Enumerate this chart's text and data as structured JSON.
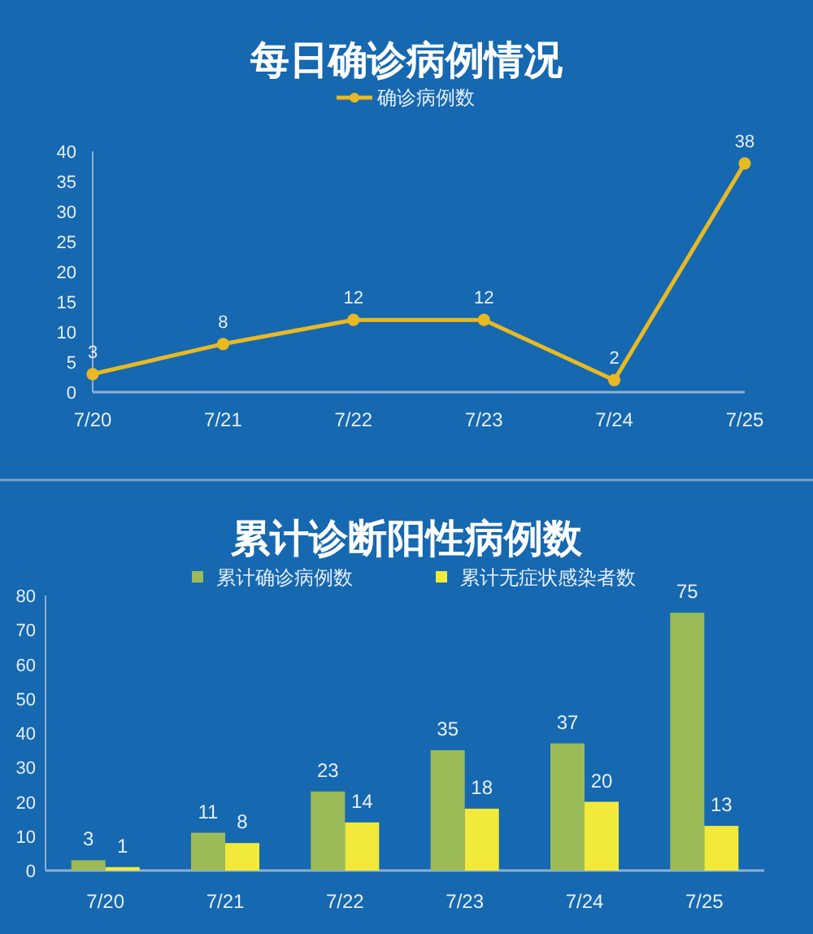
{
  "chart_data": [
    {
      "type": "line",
      "title": "每日确诊病例情况",
      "categories": [
        "7/20",
        "7/21",
        "7/22",
        "7/23",
        "7/24",
        "7/25"
      ],
      "series": [
        {
          "name": "确诊病例数",
          "color": "#e8b923",
          "values": [
            3,
            8,
            12,
            12,
            2,
            38
          ]
        }
      ],
      "ylim": [
        0,
        40
      ],
      "yticks": [
        0,
        5,
        10,
        15,
        20,
        25,
        30,
        35,
        40
      ],
      "data_labels": true,
      "legend": "top",
      "marker": "circle",
      "line_style": "solid",
      "grid": false
    },
    {
      "type": "bar",
      "title": "累计诊断阳性病例数",
      "categories": [
        "7/20",
        "7/21",
        "7/22",
        "7/23",
        "7/24",
        "7/25"
      ],
      "series": [
        {
          "name": "累计确诊病例数",
          "color": "#9bbb59",
          "values": [
            3,
            11,
            23,
            35,
            37,
            75
          ]
        },
        {
          "name": "累计无症状感染者数",
          "color": "#f2ea3a",
          "values": [
            1,
            8,
            14,
            18,
            20,
            13
          ]
        }
      ],
      "ylim": [
        0,
        80
      ],
      "yticks": [
        0,
        10,
        20,
        30,
        40,
        50,
        60,
        70,
        80
      ],
      "data_labels": true,
      "legend": "top",
      "grid": false
    }
  ]
}
